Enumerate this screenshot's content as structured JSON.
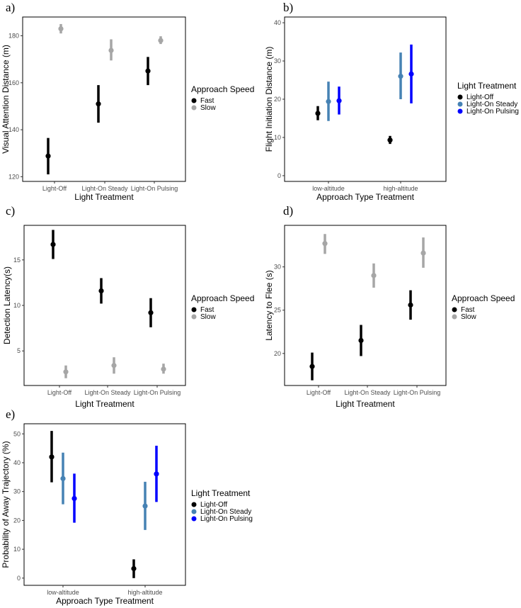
{
  "colors": {
    "fast": "#000000",
    "slow": "#a6a6a6",
    "light_off": "#000000",
    "light_on_steady": "#4682b4",
    "light_on_pulsing": "#0000ff"
  },
  "chart_data": [
    {
      "panel_label": "a)",
      "type": "scatter",
      "subtype": "point-range",
      "xlabel": "Light Treatment",
      "ylabel": "Visual Attention Distance (m)",
      "categories": [
        "Light-Off",
        "Light-On Steady",
        "Light-On Pulsing"
      ],
      "ylim": [
        118,
        188
      ],
      "yticks": [
        120,
        140,
        160,
        180
      ],
      "legend": {
        "title": "Approach Speed",
        "placement": "right"
      },
      "series": [
        {
          "name": "Fast",
          "color_key": "fast",
          "values": [
            128.8,
            151,
            165
          ],
          "lower": [
            121,
            143,
            159
          ],
          "upper": [
            136.5,
            159,
            171
          ]
        },
        {
          "name": "Slow",
          "color_key": "slow",
          "values": [
            183,
            173.8,
            178
          ],
          "lower": [
            181,
            169.5,
            176.5
          ],
          "upper": [
            185,
            178.5,
            179.8
          ]
        }
      ]
    },
    {
      "panel_label": "b)",
      "type": "scatter",
      "subtype": "point-range",
      "xlabel": "Approach Type Treatment",
      "ylabel": "Flight Initiation Distance (m)",
      "categories": [
        "low-altitude",
        "high-altitude"
      ],
      "ylim": [
        -1.5,
        41.5
      ],
      "yticks": [
        0,
        10,
        20,
        30,
        40
      ],
      "legend": {
        "title": "Light Treatment",
        "placement": "right"
      },
      "series": [
        {
          "name": "Light-Off",
          "color_key": "light_off",
          "values": [
            16.3,
            9.3
          ],
          "lower": [
            14.5,
            8.3
          ],
          "upper": [
            18.2,
            10.4
          ]
        },
        {
          "name": "Light-On Steady",
          "color_key": "light_on_steady",
          "values": [
            19.4,
            26
          ],
          "lower": [
            14.3,
            20
          ],
          "upper": [
            24.6,
            32.2
          ]
        },
        {
          "name": "Light-On Pulsing",
          "color_key": "light_on_pulsing",
          "values": [
            19.6,
            26.6
          ],
          "lower": [
            16,
            18.9
          ],
          "upper": [
            23.3,
            34.3
          ]
        }
      ]
    },
    {
      "panel_label": "c)",
      "type": "scatter",
      "subtype": "point-range",
      "xlabel": "Light Treatment",
      "ylabel": "Detection Latency(s)",
      "categories": [
        "Light-Off",
        "Light-On Steady",
        "Light-On Pulsing"
      ],
      "ylim": [
        1.2,
        18.8
      ],
      "yticks": [
        5,
        10,
        15
      ],
      "legend": {
        "title": "Approach Speed",
        "placement": "right"
      },
      "series": [
        {
          "name": "Fast",
          "color_key": "fast",
          "values": [
            16.7,
            11.6,
            9.2
          ],
          "lower": [
            15.1,
            10.2,
            7.6
          ],
          "upper": [
            18.3,
            13,
            10.8
          ]
        },
        {
          "name": "Slow",
          "color_key": "slow",
          "values": [
            2.7,
            3.4,
            3.0
          ],
          "lower": [
            2.0,
            2.5,
            2.5
          ],
          "upper": [
            3.4,
            4.3,
            3.6
          ]
        }
      ]
    },
    {
      "panel_label": "d)",
      "type": "scatter",
      "subtype": "point-range",
      "xlabel": "Light Treatment",
      "ylabel": "Latency to Flee (s)",
      "categories": [
        "Light-Off",
        "Light-On Steady",
        "Light-On Pulsing"
      ],
      "ylim": [
        16.3,
        34.8
      ],
      "yticks": [
        20,
        25,
        30
      ],
      "legend": {
        "title": "Approach Speed",
        "placement": "right"
      },
      "series": [
        {
          "name": "Fast",
          "color_key": "fast",
          "values": [
            18.5,
            21.5,
            25.6
          ],
          "lower": [
            16.9,
            19.7,
            23.9
          ],
          "upper": [
            20.1,
            23.3,
            27.3
          ]
        },
        {
          "name": "Slow",
          "color_key": "slow",
          "values": [
            32.7,
            29.0,
            31.6
          ],
          "lower": [
            31.5,
            27.6,
            29.9
          ],
          "upper": [
            33.8,
            30.4,
            33.4
          ]
        }
      ]
    },
    {
      "panel_label": "e)",
      "type": "scatter",
      "subtype": "point-range",
      "xlabel": "Approach Type Treatment",
      "ylabel": "Probability of Away Trajectory (%)",
      "categories": [
        "low-altitude",
        "high-altitude"
      ],
      "ylim": [
        -2.5,
        53.5
      ],
      "yticks": [
        0,
        10,
        20,
        30,
        40,
        50
      ],
      "legend": {
        "title": "Light Treatment",
        "placement": "right"
      },
      "series": [
        {
          "name": "Light-Off",
          "color_key": "light_off",
          "values": [
            42,
            3.3
          ],
          "lower": [
            33.2,
            0
          ],
          "upper": [
            51,
            6.5
          ]
        },
        {
          "name": "Light-On Steady",
          "color_key": "light_on_steady",
          "values": [
            34.5,
            25
          ],
          "lower": [
            25.6,
            16.7
          ],
          "upper": [
            43.5,
            33.4
          ]
        },
        {
          "name": "Light-On Pulsing",
          "color_key": "light_on_pulsing",
          "values": [
            27.6,
            36.1
          ],
          "lower": [
            19.2,
            26.4
          ],
          "upper": [
            36.2,
            45.9
          ]
        }
      ]
    }
  ]
}
